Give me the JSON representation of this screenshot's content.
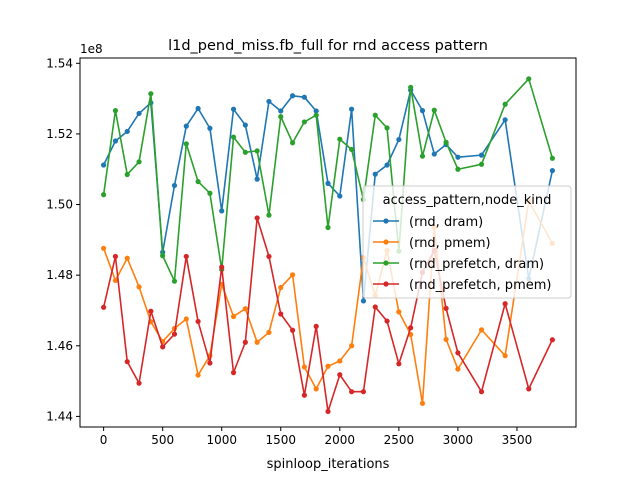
{
  "chart_data": {
    "type": "line",
    "title": "l1d_pend_miss.fb_full for rnd access pattern",
    "xlabel": "spinloop_iterations",
    "ylabel": "",
    "y_offset_label": "1e8",
    "xlim": [
      -200,
      4000
    ],
    "ylim": [
      1.437,
      1.5415
    ],
    "x_ticks": [
      0,
      500,
      1000,
      1500,
      2000,
      2500,
      3000,
      3500
    ],
    "y_ticks": [
      1.44,
      1.46,
      1.48,
      1.5,
      1.52,
      1.54
    ],
    "y_tick_labels": [
      "1.44",
      "1.46",
      "1.48",
      "1.50",
      "1.52",
      "1.54"
    ],
    "grid": false,
    "legend_title": "access_pattern,node_kind",
    "legend_position": "center-right",
    "series": [
      {
        "name": "(rnd, dram)",
        "color": "#1f77b4",
        "points": [
          [
            0,
            1.5112
          ],
          [
            100,
            1.518
          ],
          [
            200,
            1.5207
          ],
          [
            300,
            1.5258
          ],
          [
            400,
            1.5288
          ],
          [
            500,
            1.4865
          ],
          [
            600,
            1.5054
          ],
          [
            700,
            1.5222
          ],
          [
            800,
            1.5272
          ],
          [
            900,
            1.5216
          ],
          [
            1000,
            1.4982
          ],
          [
            1100,
            1.527
          ],
          [
            1200,
            1.5225
          ],
          [
            1300,
            1.5072
          ],
          [
            1400,
            1.5292
          ],
          [
            1500,
            1.5265
          ],
          [
            1600,
            1.5308
          ],
          [
            1700,
            1.5304
          ],
          [
            1800,
            1.5265
          ],
          [
            1900,
            1.506
          ],
          [
            2000,
            1.5024
          ],
          [
            2100,
            1.527
          ],
          [
            2200,
            1.4727
          ],
          [
            2300,
            1.5086
          ],
          [
            2400,
            1.5112
          ],
          [
            2500,
            1.5184
          ],
          [
            2600,
            1.5324
          ],
          [
            2700,
            1.5266
          ],
          [
            2800,
            1.5143
          ],
          [
            2900,
            1.517
          ],
          [
            3000,
            1.5134
          ],
          [
            3200,
            1.514
          ],
          [
            3400,
            1.524
          ],
          [
            3600,
            1.479
          ],
          [
            3800,
            1.5096
          ]
        ]
      },
      {
        "name": "(rnd, pmem)",
        "color": "#ff7f0e",
        "points": [
          [
            0,
            1.4876
          ],
          [
            100,
            1.4785
          ],
          [
            200,
            1.4848
          ],
          [
            300,
            1.4767
          ],
          [
            400,
            1.4668
          ],
          [
            500,
            1.4612
          ],
          [
            600,
            1.4649
          ],
          [
            700,
            1.4676
          ],
          [
            800,
            1.4517
          ],
          [
            900,
            1.4572
          ],
          [
            1000,
            1.4774
          ],
          [
            1100,
            1.4683
          ],
          [
            1200,
            1.4705
          ],
          [
            1300,
            1.461
          ],
          [
            1400,
            1.4638
          ],
          [
            1500,
            1.4765
          ],
          [
            1600,
            1.4801
          ],
          [
            1700,
            1.454
          ],
          [
            1800,
            1.4478
          ],
          [
            1900,
            1.4542
          ],
          [
            2000,
            1.4557
          ],
          [
            2100,
            1.46
          ],
          [
            2200,
            1.485
          ],
          [
            2300,
            1.4742
          ],
          [
            2400,
            1.487
          ],
          [
            2500,
            1.4696
          ],
          [
            2600,
            1.4632
          ],
          [
            2700,
            1.4437
          ],
          [
            2800,
            1.4935
          ],
          [
            2900,
            1.4618
          ],
          [
            3000,
            1.4534
          ],
          [
            3200,
            1.4645
          ],
          [
            3400,
            1.4572
          ],
          [
            3600,
            1.501
          ],
          [
            3800,
            1.489
          ]
        ]
      },
      {
        "name": "(rnd_prefetch, dram)",
        "color": "#2ca02c",
        "points": [
          [
            0,
            1.5028
          ],
          [
            100,
            1.5266
          ],
          [
            200,
            1.5085
          ],
          [
            300,
            1.5121
          ],
          [
            400,
            1.5314
          ],
          [
            500,
            1.4855
          ],
          [
            600,
            1.4783
          ],
          [
            700,
            1.5172
          ],
          [
            800,
            1.5065
          ],
          [
            900,
            1.5032
          ],
          [
            1000,
            1.4816
          ],
          [
            1100,
            1.5191
          ],
          [
            1200,
            1.5148
          ],
          [
            1300,
            1.5152
          ],
          [
            1400,
            1.497
          ],
          [
            1500,
            1.5249
          ],
          [
            1600,
            1.5175
          ],
          [
            1700,
            1.5234
          ],
          [
            1800,
            1.5253
          ],
          [
            1900,
            1.4935
          ],
          [
            2000,
            1.5185
          ],
          [
            2100,
            1.5156
          ],
          [
            2200,
            1.5014
          ],
          [
            2300,
            1.5253
          ],
          [
            2400,
            1.5217
          ],
          [
            2500,
            1.4868
          ],
          [
            2600,
            1.5332
          ],
          [
            2700,
            1.5137
          ],
          [
            2800,
            1.5267
          ],
          [
            2900,
            1.5176
          ],
          [
            3000,
            1.51
          ],
          [
            3200,
            1.5114
          ],
          [
            3400,
            1.5284
          ],
          [
            3600,
            1.5356
          ],
          [
            3800,
            1.5131
          ]
        ]
      },
      {
        "name": "(rnd_prefetch, pmem)",
        "color": "#d62728",
        "points": [
          [
            0,
            1.4709
          ],
          [
            100,
            1.4853
          ],
          [
            200,
            1.4555
          ],
          [
            300,
            1.4494
          ],
          [
            400,
            1.4698
          ],
          [
            500,
            1.4597
          ],
          [
            600,
            1.4633
          ],
          [
            700,
            1.4853
          ],
          [
            800,
            1.4669
          ],
          [
            900,
            1.4551
          ],
          [
            1000,
            1.4823
          ],
          [
            1100,
            1.4524
          ],
          [
            1200,
            1.461
          ],
          [
            1300,
            1.4962
          ],
          [
            1400,
            1.4853
          ],
          [
            1500,
            1.469
          ],
          [
            1600,
            1.4644
          ],
          [
            1700,
            1.446
          ],
          [
            1800,
            1.4655
          ],
          [
            1900,
            1.4414
          ],
          [
            2000,
            1.4518
          ],
          [
            2100,
            1.447
          ],
          [
            2200,
            1.447
          ],
          [
            2300,
            1.471
          ],
          [
            2400,
            1.467
          ],
          [
            2500,
            1.4549
          ],
          [
            2600,
            1.4651
          ],
          [
            2700,
            1.4808
          ],
          [
            2800,
            1.487
          ],
          [
            2900,
            1.4706
          ],
          [
            3000,
            1.458
          ],
          [
            3200,
            1.447
          ],
          [
            3400,
            1.4719
          ],
          [
            3600,
            1.4478
          ],
          [
            3800,
            1.4617
          ]
        ]
      }
    ]
  }
}
